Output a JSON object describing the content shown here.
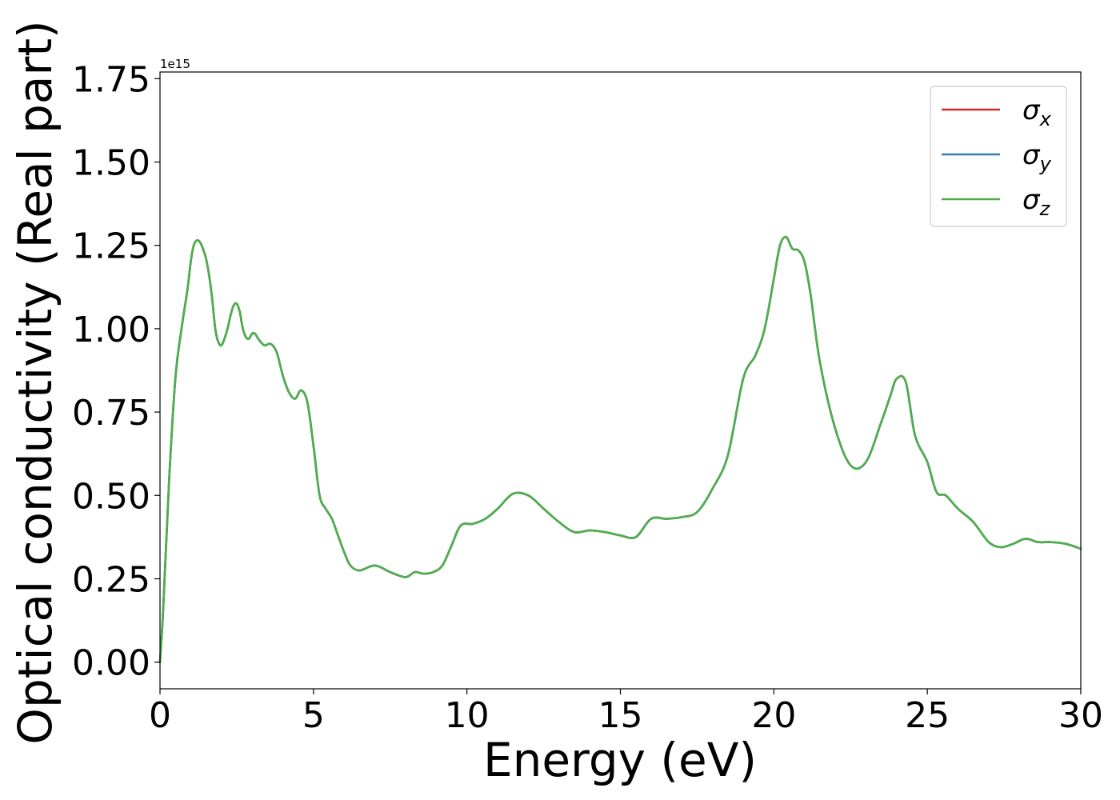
{
  "chart_data": {
    "type": "line",
    "title": "",
    "xlabel": "Energy (eV)",
    "ylabel": "Optical conductivity (Real part)",
    "y_offset_label": "1e15",
    "xlim": [
      0,
      30
    ],
    "ylim": [
      -0.08,
      1.77
    ],
    "xticks": [
      0,
      5,
      10,
      15,
      20,
      25,
      30
    ],
    "xtick_labels": [
      "0",
      "5",
      "10",
      "15",
      "20",
      "25",
      "30"
    ],
    "yticks": [
      0.0,
      0.25,
      0.5,
      0.75,
      1.0,
      1.25,
      1.5,
      1.75
    ],
    "ytick_labels": [
      "0.00",
      "0.25",
      "0.50",
      "0.75",
      "1.00",
      "1.25",
      "1.50",
      "1.75"
    ],
    "grid": false,
    "legend_position": "top-right",
    "x": [
      0,
      0.1,
      0.3,
      0.5,
      0.7,
      0.9,
      1.0,
      1.1,
      1.2,
      1.3,
      1.4,
      1.5,
      1.6,
      1.7,
      1.8,
      1.9,
      2.0,
      2.1,
      2.2,
      2.3,
      2.4,
      2.5,
      2.6,
      2.7,
      2.8,
      2.9,
      3.0,
      3.1,
      3.2,
      3.4,
      3.6,
      3.8,
      4.0,
      4.2,
      4.4,
      4.6,
      4.8,
      5.0,
      5.2,
      5.4,
      5.6,
      5.8,
      6.0,
      6.2,
      6.5,
      7.0,
      7.5,
      8.0,
      8.3,
      8.6,
      8.9,
      9.2,
      9.5,
      9.8,
      10.2,
      10.6,
      11.0,
      11.5,
      12.0,
      12.5,
      13.0,
      13.5,
      14.0,
      14.5,
      15.0,
      15.5,
      16.0,
      16.5,
      17.0,
      17.5,
      18.0,
      18.5,
      19.0,
      19.4,
      19.7,
      20.0,
      20.2,
      20.4,
      20.6,
      20.8,
      21.0,
      21.2,
      21.5,
      22.0,
      22.5,
      23.0,
      23.5,
      23.8,
      24.0,
      24.3,
      24.6,
      25.0,
      25.3,
      25.6,
      26.0,
      26.5,
      27.0,
      27.4,
      27.8,
      28.2,
      28.6,
      29.0,
      29.5,
      30.0
    ],
    "series": [
      {
        "name": "σx",
        "sub": "x",
        "color": "#d62728",
        "values": [
          0.0,
          0.15,
          0.55,
          0.85,
          1.0,
          1.12,
          1.2,
          1.25,
          1.265,
          1.26,
          1.24,
          1.21,
          1.16,
          1.09,
          1.0,
          0.96,
          0.95,
          0.97,
          1.0,
          1.04,
          1.07,
          1.075,
          1.05,
          1.0,
          0.975,
          0.97,
          0.985,
          0.985,
          0.97,
          0.95,
          0.955,
          0.93,
          0.86,
          0.81,
          0.79,
          0.815,
          0.78,
          0.65,
          0.5,
          0.46,
          0.43,
          0.38,
          0.33,
          0.29,
          0.275,
          0.29,
          0.27,
          0.255,
          0.27,
          0.265,
          0.27,
          0.29,
          0.35,
          0.41,
          0.415,
          0.43,
          0.46,
          0.505,
          0.5,
          0.46,
          0.42,
          0.39,
          0.395,
          0.39,
          0.38,
          0.375,
          0.43,
          0.43,
          0.435,
          0.45,
          0.52,
          0.62,
          0.85,
          0.92,
          1.0,
          1.15,
          1.25,
          1.275,
          1.24,
          1.235,
          1.2,
          1.1,
          0.9,
          0.7,
          0.59,
          0.6,
          0.72,
          0.8,
          0.85,
          0.84,
          0.68,
          0.6,
          0.51,
          0.5,
          0.46,
          0.42,
          0.36,
          0.345,
          0.355,
          0.37,
          0.36,
          0.36,
          0.355,
          0.34
        ]
      },
      {
        "name": "σy",
        "sub": "y",
        "color": "#377eb8",
        "values": [
          0.0,
          0.15,
          0.55,
          0.85,
          1.0,
          1.12,
          1.2,
          1.25,
          1.265,
          1.26,
          1.24,
          1.21,
          1.16,
          1.09,
          1.0,
          0.96,
          0.95,
          0.97,
          1.0,
          1.04,
          1.07,
          1.075,
          1.05,
          1.0,
          0.975,
          0.97,
          0.985,
          0.985,
          0.97,
          0.95,
          0.955,
          0.93,
          0.86,
          0.81,
          0.79,
          0.815,
          0.78,
          0.65,
          0.5,
          0.46,
          0.43,
          0.38,
          0.33,
          0.29,
          0.275,
          0.29,
          0.27,
          0.255,
          0.27,
          0.265,
          0.27,
          0.29,
          0.35,
          0.41,
          0.415,
          0.43,
          0.46,
          0.505,
          0.5,
          0.46,
          0.42,
          0.39,
          0.395,
          0.39,
          0.38,
          0.375,
          0.43,
          0.43,
          0.435,
          0.45,
          0.52,
          0.62,
          0.85,
          0.92,
          1.0,
          1.15,
          1.25,
          1.275,
          1.24,
          1.235,
          1.2,
          1.1,
          0.9,
          0.7,
          0.59,
          0.6,
          0.72,
          0.8,
          0.85,
          0.84,
          0.68,
          0.6,
          0.51,
          0.5,
          0.46,
          0.42,
          0.36,
          0.345,
          0.355,
          0.37,
          0.36,
          0.36,
          0.355,
          0.34
        ]
      },
      {
        "name": "σz",
        "sub": "z",
        "color": "#4daf4a",
        "values": [
          0.0,
          0.15,
          0.55,
          0.85,
          1.0,
          1.12,
          1.2,
          1.25,
          1.265,
          1.26,
          1.24,
          1.21,
          1.16,
          1.09,
          1.0,
          0.96,
          0.95,
          0.97,
          1.0,
          1.04,
          1.07,
          1.075,
          1.05,
          1.0,
          0.975,
          0.97,
          0.985,
          0.985,
          0.97,
          0.95,
          0.955,
          0.93,
          0.86,
          0.81,
          0.79,
          0.815,
          0.78,
          0.65,
          0.5,
          0.46,
          0.43,
          0.38,
          0.33,
          0.29,
          0.275,
          0.29,
          0.27,
          0.255,
          0.27,
          0.265,
          0.27,
          0.29,
          0.35,
          0.41,
          0.415,
          0.43,
          0.46,
          0.505,
          0.5,
          0.46,
          0.42,
          0.39,
          0.395,
          0.39,
          0.38,
          0.375,
          0.43,
          0.43,
          0.435,
          0.45,
          0.52,
          0.62,
          0.85,
          0.92,
          1.0,
          1.15,
          1.25,
          1.275,
          1.24,
          1.235,
          1.2,
          1.1,
          0.9,
          0.7,
          0.59,
          0.6,
          0.72,
          0.8,
          0.85,
          0.84,
          0.68,
          0.6,
          0.51,
          0.5,
          0.46,
          0.42,
          0.36,
          0.345,
          0.355,
          0.37,
          0.36,
          0.36,
          0.355,
          0.34
        ]
      }
    ]
  }
}
